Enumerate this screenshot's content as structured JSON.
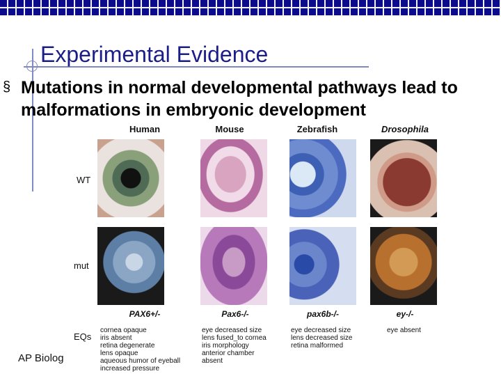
{
  "slide": {
    "title": "Experimental Evidence",
    "bullet_symbol": "§",
    "bullet_line1": "Mutations in normal developmental pathways lead to",
    "bullet_line2": "malformations in embryonic development",
    "footer": "AP Biolog"
  },
  "figure": {
    "columns": [
      "Human",
      "Mouse",
      "Zebrafish",
      "Drosophila"
    ],
    "rows": [
      "WT",
      "mut",
      "EQs"
    ],
    "mutants": [
      "PAX6+/-",
      "Pax6-/-",
      "pax6b-/-",
      "ey-/-"
    ],
    "eqs": [
      "cornea opaque\niris absent\nretina degenerate\nlens opaque\naqueous humor of eyeball\nincreased pressure",
      "eye decreased size\nlens fused_to cornea\niris morphology\nanterior chamber\nabsent",
      "eye decreased size\nlens decreased size\nretina malformed",
      "eye absent"
    ]
  },
  "colors": {
    "title": "#1b1e86",
    "topbar": "#0b0b8c",
    "accent_line": "#7f89c6"
  }
}
